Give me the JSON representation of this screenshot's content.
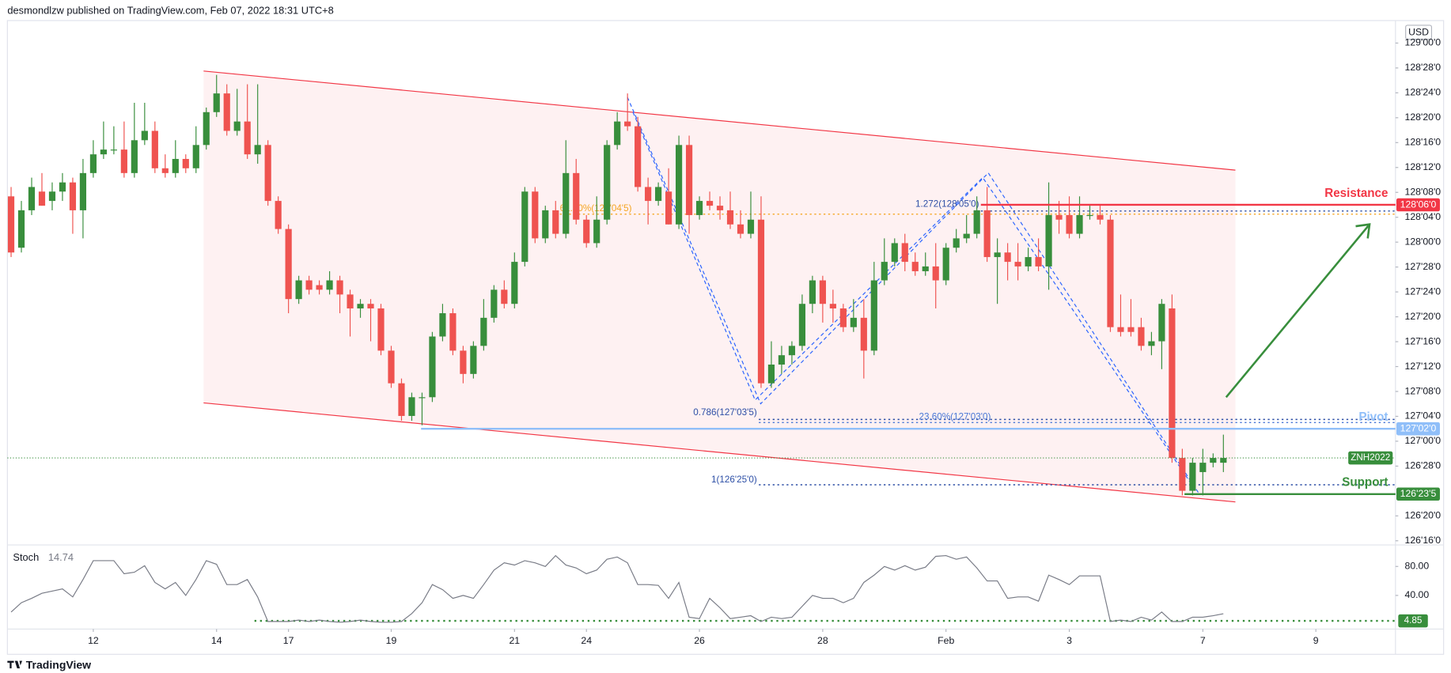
{
  "chart_data": [
    {
      "type": "candlestick",
      "header": "desmondlzw published on TradingView.com, Feb 07, 2022 18:31 UTC+8",
      "currency": "USD",
      "brand": "TradingView",
      "symbol": "ZNH2022",
      "up_color": "#388e3c",
      "down_color": "#ef5350",
      "xlim": [
        -0.36,
        134.75
      ],
      "xticks": [
        {
          "value": 8,
          "label": "12"
        },
        {
          "value": 20,
          "label": "14"
        },
        {
          "value": 27,
          "label": "17"
        },
        {
          "value": 37,
          "label": "19"
        },
        {
          "value": 49,
          "label": "21"
        },
        {
          "value": 56,
          "label": "24"
        },
        {
          "value": 67,
          "label": "26"
        },
        {
          "value": 79,
          "label": "28"
        },
        {
          "value": 91,
          "label": "Feb"
        },
        {
          "value": 103,
          "label": "3"
        },
        {
          "value": 116,
          "label": "7"
        },
        {
          "value": 127,
          "label": "9"
        }
      ],
      "ylim": [
        126.479,
        129.113
      ],
      "yticks": [
        {
          "value": 129,
          "label": "129'00'0"
        },
        {
          "value": 128.875,
          "label": "128'28'0"
        },
        {
          "value": 128.75,
          "label": "128'24'0"
        },
        {
          "value": 128.625,
          "label": "128'20'0"
        },
        {
          "value": 128.5,
          "label": "128'16'0"
        },
        {
          "value": 128.375,
          "label": "128'12'0"
        },
        {
          "value": 128.25,
          "label": "128'08'0"
        },
        {
          "value": 128.125,
          "label": "128'04'0"
        },
        {
          "value": 128,
          "label": "128'00'0"
        },
        {
          "value": 127.875,
          "label": "127'28'0"
        },
        {
          "value": 127.75,
          "label": "127'24'0"
        },
        {
          "value": 127.625,
          "label": "127'20'0"
        },
        {
          "value": 127.5,
          "label": "127'16'0"
        },
        {
          "value": 127.375,
          "label": "127'12'0"
        },
        {
          "value": 127.25,
          "label": "127'08'0"
        },
        {
          "value": 127.125,
          "label": "127'04'0"
        },
        {
          "value": 127,
          "label": "127'00'0"
        },
        {
          "value": 126.875,
          "label": "126'28'0"
        },
        {
          "value": 126.625,
          "label": "126'20'0"
        },
        {
          "value": 126.5,
          "label": "126'16'0"
        }
      ],
      "open": [
        128.23,
        127.972,
        128.16,
        128.254,
        128.207,
        128.254,
        128.3,
        128.16,
        128.347,
        128.441,
        128.465,
        128.465,
        128.347,
        128.512,
        128.559,
        128.371,
        128.347,
        128.418,
        128.371,
        128.488,
        128.653,
        128.747,
        128.559,
        128.606,
        128.441,
        128.488,
        128.207,
        128.066,
        127.714,
        127.808,
        127.784,
        127.761,
        127.808,
        127.737,
        127.667,
        127.69,
        127.667,
        127.455,
        127.291,
        127.127,
        127.221,
        127.221,
        127.526,
        127.643,
        127.455,
        127.338,
        127.479,
        127.62,
        127.761,
        127.69,
        127.901,
        128.254,
        128.019,
        128.16,
        128.042,
        128.347,
        128.113,
        127.995,
        128.113,
        128.488,
        128.606,
        128.582,
        128.277,
        128.207,
        128.254,
        128.089,
        128.488,
        128.136,
        128.207,
        128.183,
        128.16,
        128.089,
        128.042,
        128.113,
        127.291,
        127.385,
        127.432,
        127.479,
        127.69,
        127.808,
        127.69,
        127.667,
        127.573,
        127.62,
        127.455,
        127.808,
        127.901,
        127.995,
        127.901,
        127.854,
        127.878,
        127.808,
        127.972,
        128.019,
        128.042,
        128.16,
        127.925,
        127.948,
        127.901,
        127.878,
        127.925,
        127.878,
        128.136,
        128.136,
        128.042,
        128.136,
        128.136,
        128.113,
        127.573,
        127.573,
        127.573,
        127.479,
        127.502,
        127.667,
        126.916,
        126.751,
        126.845,
        126.892,
        126.892
      ],
      "high": [
        128.277,
        128.207,
        128.324,
        128.347,
        128.3,
        128.347,
        128.324,
        128.418,
        128.512,
        128.606,
        128.582,
        128.606,
        128.7,
        128.7,
        128.606,
        128.441,
        128.512,
        128.441,
        128.582,
        128.676,
        128.84,
        128.793,
        128.77,
        128.793,
        128.793,
        128.512,
        128.23,
        128.089,
        127.831,
        127.831,
        127.808,
        127.854,
        127.831,
        127.761,
        127.714,
        127.714,
        127.69,
        127.479,
        127.315,
        127.244,
        127.244,
        127.549,
        127.69,
        127.667,
        127.479,
        127.502,
        127.714,
        127.784,
        127.808,
        127.948,
        128.277,
        128.277,
        128.183,
        128.207,
        128.512,
        128.418,
        128.136,
        128.23,
        128.512,
        128.653,
        128.747,
        128.629,
        128.324,
        128.3,
        128.371,
        128.535,
        128.535,
        128.23,
        128.254,
        128.23,
        128.254,
        128.16,
        128.254,
        128.23,
        127.502,
        127.479,
        127.502,
        127.737,
        127.831,
        127.831,
        127.761,
        127.69,
        127.714,
        127.714,
        127.901,
        128.019,
        128.019,
        128.042,
        127.948,
        127.948,
        127.995,
        127.995,
        128.066,
        128.136,
        128.23,
        128.277,
        128.019,
        127.995,
        127.995,
        127.972,
        128.019,
        128.3,
        128.207,
        128.23,
        128.23,
        128.183,
        128.183,
        128.136,
        127.737,
        127.714,
        127.62,
        127.549,
        127.714,
        127.737,
        126.962,
        126.916,
        126.962,
        126.939,
        127.033
      ],
      "low": [
        127.925,
        127.948,
        128.136,
        128.183,
        128.16,
        128.207,
        128.042,
        128.019,
        128.324,
        128.418,
        128.441,
        128.324,
        128.324,
        128.488,
        128.347,
        128.324,
        128.324,
        128.347,
        128.347,
        128.465,
        128.629,
        128.535,
        128.535,
        128.418,
        128.394,
        128.183,
        128.042,
        127.643,
        127.69,
        127.737,
        127.737,
        127.737,
        127.643,
        127.526,
        127.62,
        127.502,
        127.432,
        127.268,
        127.103,
        127.103,
        127.08,
        127.197,
        127.502,
        127.432,
        127.291,
        127.315,
        127.455,
        127.596,
        127.667,
        127.667,
        127.878,
        127.995,
        127.995,
        128.019,
        128.019,
        128.089,
        127.972,
        127.972,
        128.089,
        128.465,
        128.559,
        128.254,
        128.089,
        128.183,
        128.089,
        128.066,
        128.042,
        128.113,
        128.16,
        128.113,
        128.066,
        128.019,
        128.019,
        127.268,
        127.268,
        127.338,
        127.385,
        127.455,
        127.643,
        127.596,
        127.596,
        127.549,
        127.549,
        127.315,
        127.432,
        127.784,
        127.878,
        127.854,
        127.831,
        127.831,
        127.667,
        127.784,
        127.948,
        127.995,
        128.019,
        127.901,
        127.69,
        127.808,
        127.808,
        127.854,
        127.854,
        127.761,
        128.042,
        128.019,
        128.019,
        128.113,
        128.089,
        127.549,
        127.526,
        127.526,
        127.455,
        127.432,
        127.362,
        126.892,
        126.728,
        126.728,
        126.728,
        126.869,
        126.845
      ],
      "close": [
        127.948,
        128.16,
        128.277,
        128.183,
        128.254,
        128.3,
        128.16,
        128.347,
        128.441,
        128.465,
        128.465,
        128.347,
        128.512,
        128.559,
        128.371,
        128.347,
        128.418,
        128.371,
        128.488,
        128.653,
        128.747,
        128.559,
        128.606,
        128.441,
        128.488,
        128.207,
        128.066,
        127.714,
        127.808,
        127.761,
        127.761,
        127.808,
        127.737,
        127.667,
        127.69,
        127.667,
        127.455,
        127.291,
        127.127,
        127.221,
        127.221,
        127.526,
        127.643,
        127.455,
        127.338,
        127.479,
        127.62,
        127.761,
        127.69,
        127.901,
        128.254,
        128.019,
        128.16,
        128.042,
        128.347,
        128.113,
        127.995,
        128.113,
        128.488,
        128.606,
        128.582,
        128.277,
        128.207,
        128.277,
        128.089,
        128.488,
        128.136,
        128.207,
        128.183,
        128.16,
        128.089,
        128.042,
        128.113,
        127.291,
        127.385,
        127.432,
        127.479,
        127.69,
        127.808,
        127.69,
        127.667,
        127.573,
        127.62,
        127.455,
        127.808,
        127.901,
        127.995,
        127.901,
        127.854,
        127.878,
        127.808,
        127.972,
        128.019,
        128.042,
        128.16,
        127.925,
        127.948,
        127.901,
        127.878,
        127.925,
        127.878,
        128.136,
        128.113,
        128.042,
        128.136,
        128.136,
        128.113,
        127.573,
        127.549,
        127.549,
        127.479,
        127.502,
        127.69,
        126.916,
        126.751,
        126.892,
        126.892,
        126.916,
        126.916
      ],
      "levels": [
        {
          "name": "Resistance",
          "value": 128.1875,
          "label": "128'06'0",
          "color": "#f23645"
        },
        {
          "name": "Pivot",
          "value": 127.0625,
          "label": "127'02'0",
          "color": "#90bff9"
        },
        {
          "name": "Support",
          "value": 126.734375,
          "label": "126'23'5",
          "color": "#388e3c"
        }
      ],
      "fib_levels": [
        {
          "label": "1.272(128'05'0)",
          "value": 128.15625,
          "color": "#2d4fa6"
        },
        {
          "label": "0.786(127'03'5)",
          "value": 127.109375,
          "color": "#2d4fa6"
        },
        {
          "label": "1(126'25'0)",
          "value": 126.78125,
          "color": "#2d4fa6"
        },
        {
          "label": "23.60%(127'03'0)",
          "value": 127.09375,
          "color": "#4a78d6"
        },
        {
          "label": "61.80%(128'04'5)",
          "value": 128.140625,
          "color": "#f5a623"
        }
      ]
    },
    {
      "type": "line",
      "title": "Stoch",
      "color": "#787b86",
      "ylim": [
        -6.45,
        107.1
      ],
      "yticks": [
        {
          "value": 80,
          "label": "80.00"
        },
        {
          "value": 40,
          "label": "40.00"
        }
      ],
      "level": 4.85,
      "level_color": "#388e3c",
      "values": [
        17,
        30,
        36,
        43,
        46,
        49,
        38,
        62,
        88,
        88,
        88,
        70,
        72,
        81,
        58,
        49,
        58,
        40,
        62,
        88,
        83,
        55,
        55,
        62,
        38,
        4,
        4,
        4,
        6,
        4,
        6,
        4,
        3,
        4,
        6,
        4,
        3,
        3,
        4,
        15,
        30,
        55,
        48,
        36,
        40,
        36,
        55,
        75,
        85,
        82,
        88,
        85,
        80,
        95,
        82,
        78,
        70,
        75,
        90,
        93,
        85,
        55,
        55,
        54,
        36,
        58,
        10,
        8,
        36,
        23,
        8,
        10,
        12,
        4,
        10,
        8,
        10,
        25,
        40,
        36,
        36,
        30,
        36,
        58,
        68,
        80,
        75,
        81,
        75,
        79,
        94,
        95,
        90,
        93,
        78,
        60,
        60,
        36,
        38,
        38,
        32,
        68,
        62,
        55,
        67,
        67,
        67,
        4,
        6,
        4,
        10,
        6,
        17,
        4,
        4,
        10,
        10,
        12,
        14.74
      ]
    }
  ]
}
